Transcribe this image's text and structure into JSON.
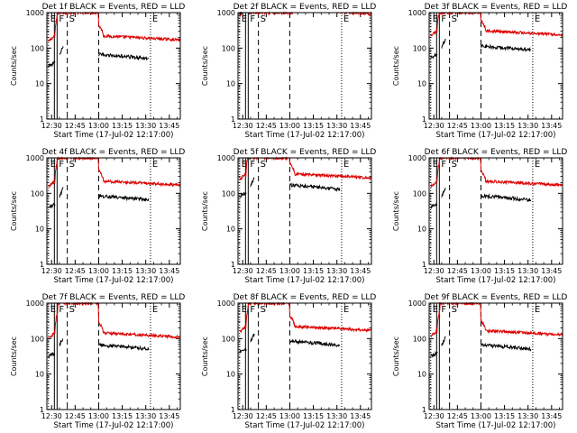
{
  "colors": {
    "events": "#000000",
    "lld": "#dd0000",
    "axis": "#000000"
  },
  "chart_data": {
    "type": "line",
    "layout": "3x3 grid",
    "ylabel": "Counts/sec",
    "xlabel": "Start Time (17-Jul-02 12:17:00)",
    "x_units": "minutes after 12:17:00",
    "xlim": [
      10,
      95
    ],
    "ylim": [
      1,
      1000
    ],
    "yscale": "log",
    "x_ticks": [
      {
        "label": "12:30",
        "x": 13
      },
      {
        "label": "12:45",
        "x": 28
      },
      {
        "label": "13:00",
        "x": 43
      },
      {
        "label": "13:15",
        "x": 58
      },
      {
        "label": "13:30",
        "x": 73
      },
      {
        "label": "13:45",
        "x": 88
      }
    ],
    "y_ticks": [
      {
        "label": "1",
        "y": 1
      },
      {
        "label": "10",
        "y": 10
      },
      {
        "label": "100",
        "y": 100
      },
      {
        "label": "1000",
        "y": 1000
      }
    ],
    "panels": [
      {
        "title": "Det 1f BLACK = Events, RED = LLD",
        "events_base": 35,
        "lld_base": 200,
        "x_tick_labels": [
          "12:30",
          "12:45",
          "13:00",
          "13:15",
          "13:30",
          "13:45"
        ]
      },
      {
        "title": "Det 2f BLACK = Events, RED = LLD",
        "events_base": 1100,
        "lld_base": 1100,
        "x_tick_labels": [
          "12:30",
          "12:45",
          "13:00",
          "13:15",
          "13:30",
          "13:45"
        ]
      },
      {
        "title": "Det 3f BLACK = Events, RED = LLD",
        "events_base": 60,
        "lld_base": 280,
        "x_tick_labels": [
          "12:30",
          "12:45",
          "13:00",
          "13:15",
          "13:30",
          "13:45"
        ]
      },
      {
        "title": "Det 4f BLACK = Events, RED = LLD",
        "events_base": 45,
        "lld_base": 200,
        "x_tick_labels": [
          "12:30",
          "12:45",
          "13:00",
          "13:15",
          "13:30",
          "13:45"
        ]
      },
      {
        "title": "Det 5f BLACK = Events, RED = LLD",
        "events_base": 90,
        "lld_base": 320,
        "x_tick_labels": [
          "12:30",
          "12:45",
          "13:00",
          "13:15",
          "13:30",
          "13:45"
        ]
      },
      {
        "title": "Det 6f BLACK = Events, RED = LLD",
        "events_base": 45,
        "lld_base": 200,
        "x_tick_labels": [
          "12:30",
          "12:45",
          "13:00",
          "13:15",
          "13:30",
          "13:45"
        ]
      },
      {
        "title": "Det 7f BLACK = Events, RED = LLD",
        "events_base": 35,
        "lld_base": 130,
        "x_tick_labels": [
          "12:30",
          "12:45",
          "13:00",
          "13:15",
          "13:30",
          "13:45"
        ]
      },
      {
        "title": "Det 8f BLACK = Events, RED = LLD",
        "events_base": 45,
        "lld_base": 200,
        "x_tick_labels": [
          "12:30",
          "12:45",
          "13:00",
          "13:15",
          "13:30",
          "13:45"
        ]
      },
      {
        "title": "Det 9f BLACK = Events, RED = LLD",
        "events_base": 35,
        "lld_base": 150,
        "x_tick_labels": [
          "12:30",
          "12:45",
          "13:00",
          "13:15",
          "13:30",
          "13:45"
        ]
      }
    ],
    "markers": [
      {
        "label": "E",
        "x": 11,
        "style": "dotted"
      },
      {
        "label": "F",
        "x": 16.5,
        "style": "solid"
      },
      {
        "label": "S",
        "x": 23,
        "style": "dashed"
      },
      {
        "label": "",
        "x": 43,
        "style": "dashed"
      },
      {
        "label": "E",
        "x": 76,
        "style": "dotted"
      }
    ],
    "series": [
      {
        "name": "Events",
        "color": "black",
        "segments": [
          [
            11,
            15.5
          ],
          [
            18,
            20.5
          ],
          [
            43,
            75
          ]
        ]
      },
      {
        "name": "LLD",
        "color": "red",
        "segments": [
          [
            11,
            95
          ]
        ]
      }
    ]
  }
}
